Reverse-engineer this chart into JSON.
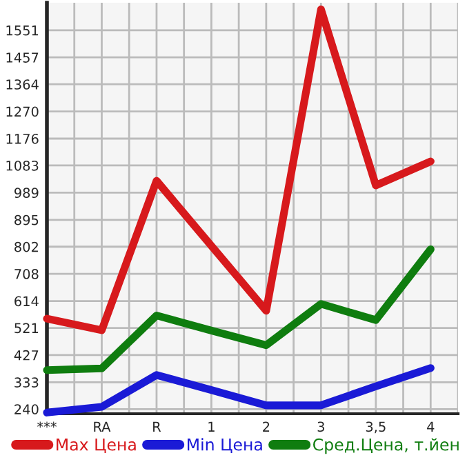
{
  "chart_data": {
    "type": "line",
    "categories": [
      "***",
      "RA",
      "R",
      "1",
      "2",
      "3",
      "3,5",
      "4"
    ],
    "series": [
      {
        "name": "Max Цена",
        "color": "#d7191c",
        "values": [
          553,
          513,
          1030,
          805,
          580,
          1623,
          1014,
          1097
        ]
      },
      {
        "name": "Min Цена",
        "color": "#1a1ad6",
        "values": [
          228,
          248,
          358,
          306,
          253,
          253,
          319,
          382
        ]
      },
      {
        "name": "Сред.Цена, т.йен",
        "color": "#0f7d0f",
        "values": [
          375,
          381,
          564,
          512,
          461,
          604,
          548,
          793
        ]
      }
    ],
    "ylim": [
      224,
      1646
    ],
    "yticks": [
      240,
      333,
      427,
      521,
      614,
      708,
      802,
      895,
      989,
      1083,
      1176,
      1270,
      1364,
      1457,
      1551
    ],
    "grid": true,
    "legend": "bottom",
    "marker": "none",
    "line_style": "solid"
  }
}
